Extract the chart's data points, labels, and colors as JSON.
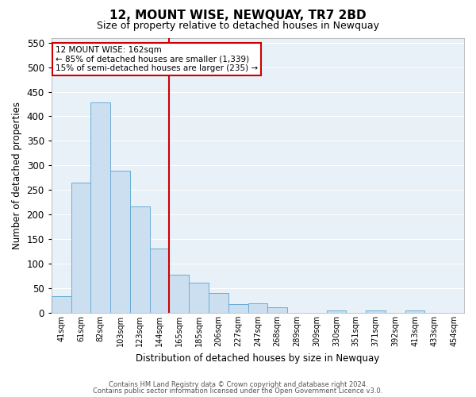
{
  "title": "12, MOUNT WISE, NEWQUAY, TR7 2BD",
  "subtitle": "Size of property relative to detached houses in Newquay",
  "xlabel": "Distribution of detached houses by size in Newquay",
  "ylabel": "Number of detached properties",
  "bar_values": [
    33,
    265,
    428,
    290,
    217,
    130,
    77,
    61,
    40,
    18,
    20,
    11,
    0,
    0,
    5,
    0,
    4,
    0,
    4,
    0,
    0
  ],
  "bar_labels": [
    "41sqm",
    "61sqm",
    "82sqm",
    "103sqm",
    "123sqm",
    "144sqm",
    "165sqm",
    "185sqm",
    "206sqm",
    "227sqm",
    "247sqm",
    "268sqm",
    "289sqm",
    "309sqm",
    "330sqm",
    "351sqm",
    "371sqm",
    "392sqm",
    "413sqm",
    "433sqm",
    "454sqm"
  ],
  "bar_color": "#ccdff0",
  "bar_edge_color": "#6aadd5",
  "background_color": "#e8f0f8",
  "vline_color": "#cc0000",
  "property_label": "12 MOUNT WISE: 162sqm",
  "annotation_line1": "← 85% of detached houses are smaller (1,339)",
  "annotation_line2": "15% of semi-detached houses are larger (235) →",
  "annotation_box_color": "#cc0000",
  "ylim": [
    0,
    560
  ],
  "yticks": [
    0,
    50,
    100,
    150,
    200,
    250,
    300,
    350,
    400,
    450,
    500,
    550
  ],
  "footer1": "Contains HM Land Registry data © Crown copyright and database right 2024.",
  "footer2": "Contains public sector information licensed under the Open Government Licence v3.0.",
  "figsize": [
    6.0,
    5.0
  ],
  "dpi": 100
}
